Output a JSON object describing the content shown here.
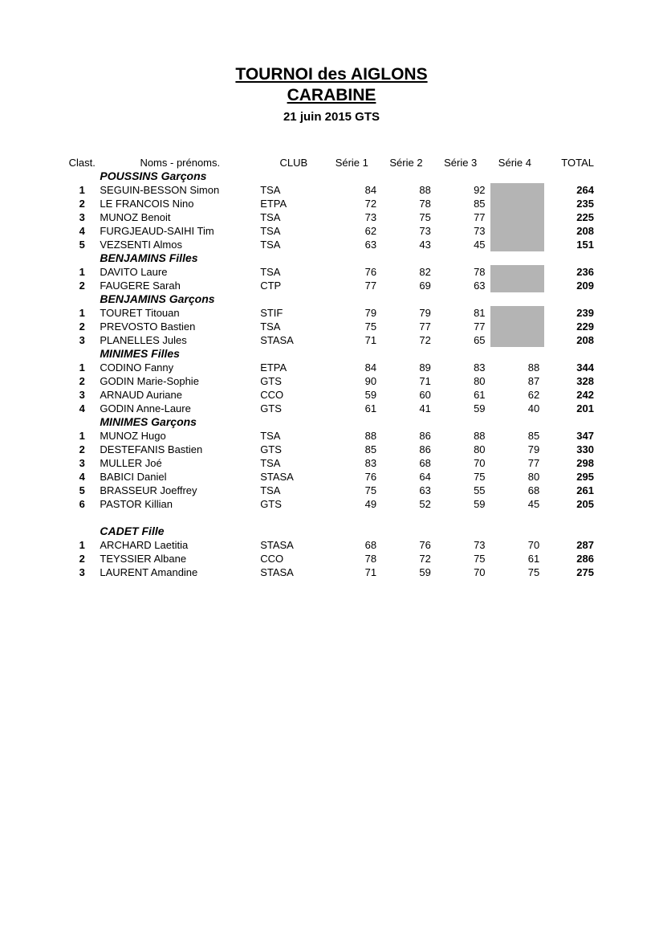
{
  "title_line1": "TOURNOI des AIGLONS",
  "title_line2": "CARABINE",
  "subtitle": "21 juin 2015 GTS",
  "colors": {
    "background": "#ffffff",
    "text": "#000000",
    "grey_fill": "#b4b4b4"
  },
  "fonts": {
    "family": "Arial",
    "title_size_pt": 16,
    "subtitle_size_pt": 11,
    "body_size_pt": 10,
    "category_size_pt": 11
  },
  "headers": {
    "rank": "Clast.",
    "name": "Noms - prénoms.",
    "club": "CLUB",
    "s1": "Série 1",
    "s2": "Série 2",
    "s3": "Série 3",
    "s4": "Série 4",
    "total": "TOTAL"
  },
  "categories": [
    {
      "label": "POUSSINS Garçons",
      "serie4_grey": true,
      "rows": [
        {
          "rank": "1",
          "name": "SEGUIN-BESSON Simon",
          "club": "TSA",
          "s1": "84",
          "s2": "88",
          "s3": "92",
          "s4": "",
          "total": "264"
        },
        {
          "rank": "2",
          "name": "LE FRANCOIS Nino",
          "club": "ETPA",
          "s1": "72",
          "s2": "78",
          "s3": "85",
          "s4": "",
          "total": "235"
        },
        {
          "rank": "3",
          "name": "MUNOZ Benoit",
          "club": "TSA",
          "s1": "73",
          "s2": "75",
          "s3": "77",
          "s4": "",
          "total": "225"
        },
        {
          "rank": "4",
          "name": "FURGJEAUD-SAIHI Tim",
          "club": "TSA",
          "s1": "62",
          "s2": "73",
          "s3": "73",
          "s4": "",
          "total": "208"
        },
        {
          "rank": "5",
          "name": "VEZSENTI Almos",
          "club": "TSA",
          "s1": "63",
          "s2": "43",
          "s3": "45",
          "s4": "",
          "total": "151"
        }
      ]
    },
    {
      "label": "BENJAMINS Filles",
      "serie4_grey": true,
      "rows": [
        {
          "rank": "1",
          "name": "DAVITO Laure",
          "club": "TSA",
          "s1": "76",
          "s2": "82",
          "s3": "78",
          "s4": "",
          "total": "236"
        },
        {
          "rank": "2",
          "name": "FAUGERE Sarah",
          "club": "CTP",
          "s1": "77",
          "s2": "69",
          "s3": "63",
          "s4": "",
          "total": "209"
        }
      ]
    },
    {
      "label": "BENJAMINS Garçons",
      "serie4_grey": true,
      "rows": [
        {
          "rank": "1",
          "name": "TOURET Titouan",
          "club": "STIF",
          "s1": "79",
          "s2": "79",
          "s3": "81",
          "s4": "",
          "total": "239"
        },
        {
          "rank": "2",
          "name": "PREVOSTO Bastien",
          "club": "TSA",
          "s1": "75",
          "s2": "77",
          "s3": "77",
          "s4": "",
          "total": "229"
        },
        {
          "rank": "3",
          "name": "PLANELLES Jules",
          "club": "STASA",
          "s1": "71",
          "s2": "72",
          "s3": "65",
          "s4": "",
          "total": "208"
        }
      ]
    },
    {
      "label": "MINIMES Filles",
      "serie4_grey": false,
      "rows": [
        {
          "rank": "1",
          "name": "CODINO Fanny",
          "club": "ETPA",
          "s1": "84",
          "s2": "89",
          "s3": "83",
          "s4": "88",
          "total": "344"
        },
        {
          "rank": "2",
          "name": "GODIN  Marie-Sophie",
          "club": "GTS",
          "s1": "90",
          "s2": "71",
          "s3": "80",
          "s4": "87",
          "total": "328"
        },
        {
          "rank": "3",
          "name": "ARNAUD Auriane",
          "club": "CCO",
          "s1": "59",
          "s2": "60",
          "s3": "61",
          "s4": "62",
          "total": "242"
        },
        {
          "rank": "4",
          "name": "GODIN  Anne-Laure",
          "club": "GTS",
          "s1": "61",
          "s2": "41",
          "s3": "59",
          "s4": "40",
          "total": "201"
        }
      ]
    },
    {
      "label": "MINIMES Garçons",
      "serie4_grey": false,
      "rows": [
        {
          "rank": "1",
          "name": "MUNOZ Hugo",
          "club": "TSA",
          "s1": "88",
          "s2": "86",
          "s3": "88",
          "s4": "85",
          "total": "347"
        },
        {
          "rank": "2",
          "name": "DESTEFANIS Bastien",
          "club": "GTS",
          "s1": "85",
          "s2": "86",
          "s3": "80",
          "s4": "79",
          "total": "330"
        },
        {
          "rank": "3",
          "name": "MULLER Joé",
          "club": "TSA",
          "s1": "83",
          "s2": "68",
          "s3": "70",
          "s4": "77",
          "total": "298"
        },
        {
          "rank": "4",
          "name": "BABICI Daniel",
          "club": "STASA",
          "s1": "76",
          "s2": "64",
          "s3": "75",
          "s4": "80",
          "total": "295"
        },
        {
          "rank": "5",
          "name": "BRASSEUR Joeffrey",
          "club": "TSA",
          "s1": "75",
          "s2": "63",
          "s3": "55",
          "s4": "68",
          "total": "261"
        },
        {
          "rank": "6",
          "name": "PASTOR Killian",
          "club": "GTS",
          "s1": "49",
          "s2": "52",
          "s3": "59",
          "s4": "45",
          "total": "205"
        }
      ]
    },
    {
      "label": "CADET Fille",
      "serie4_grey": false,
      "big_gap_before": true,
      "rows": [
        {
          "rank": "1",
          "name": "ARCHARD Laetitia",
          "club": "STASA",
          "s1": "68",
          "s2": "76",
          "s3": "73",
          "s4": "70",
          "total": "287"
        },
        {
          "rank": "2",
          "name": "TEYSSIER Albane",
          "club": "CCO",
          "s1": "78",
          "s2": "72",
          "s3": "75",
          "s4": "61",
          "total": "286"
        },
        {
          "rank": "3",
          "name": "LAURENT Amandine",
          "club": "STASA",
          "s1": "71",
          "s2": "59",
          "s3": "70",
          "s4": "75",
          "total": "275"
        }
      ]
    }
  ]
}
